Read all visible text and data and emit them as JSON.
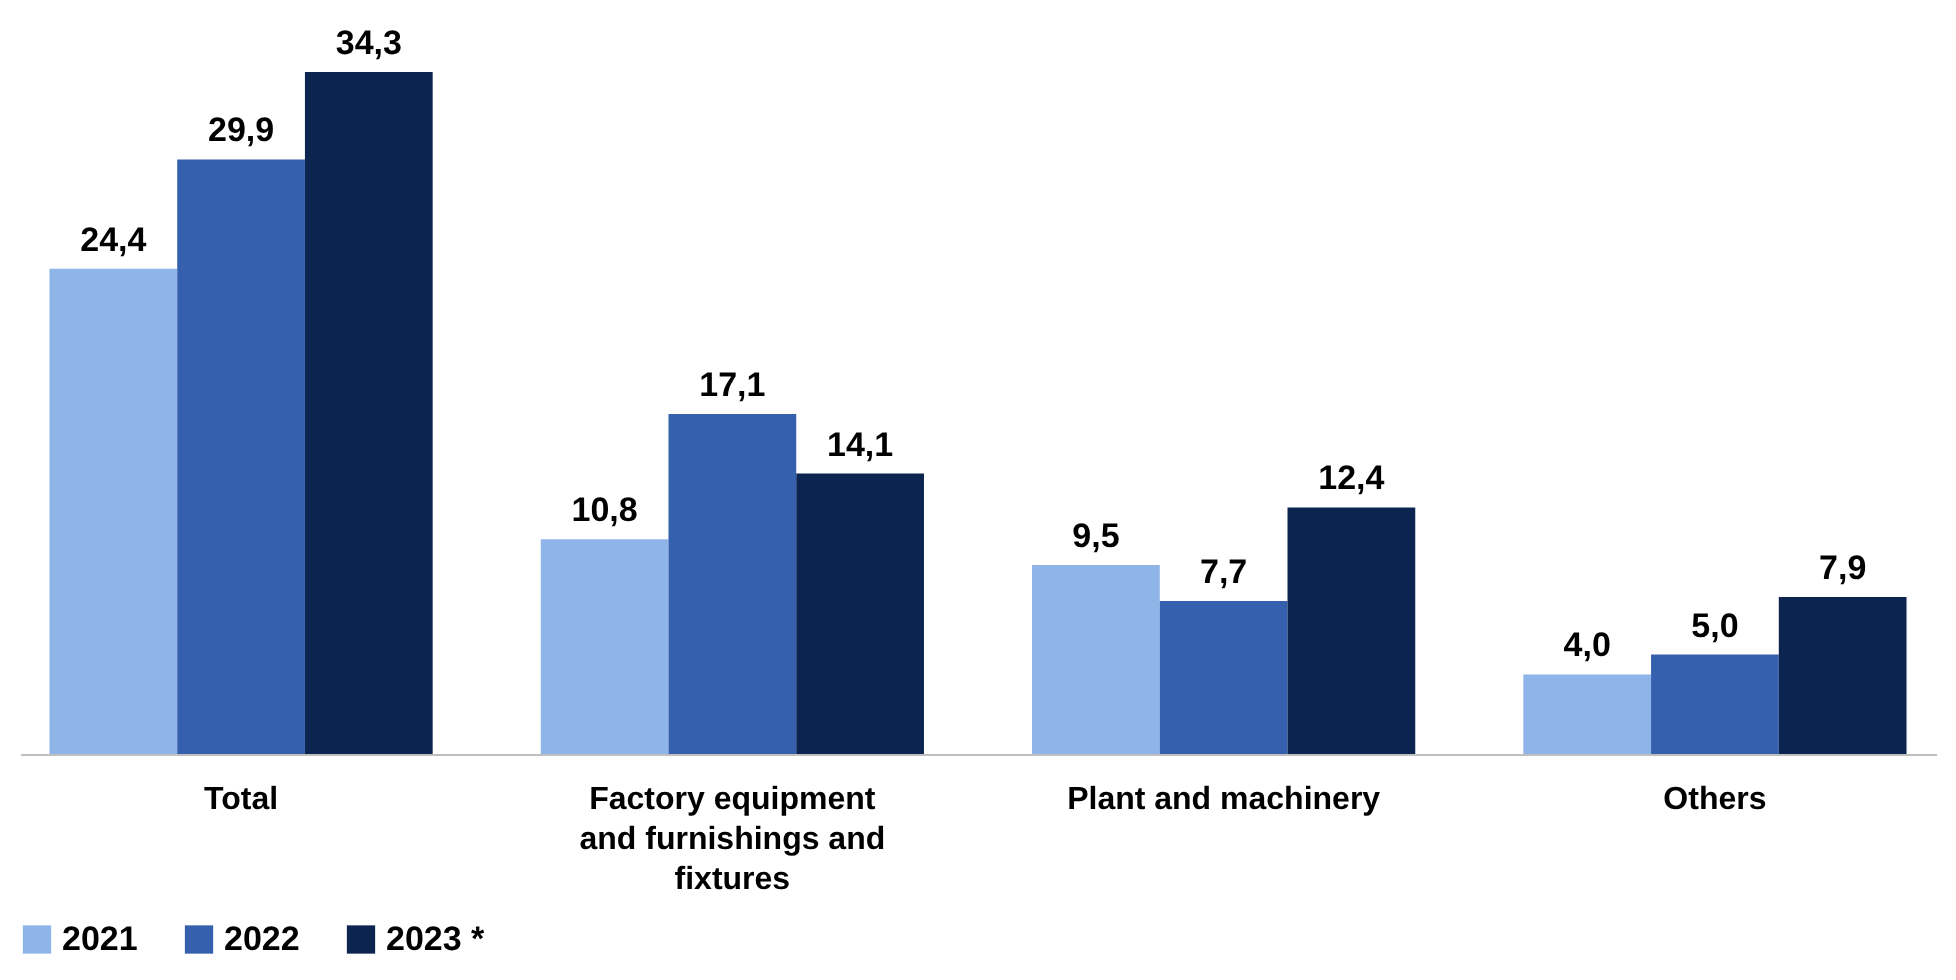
{
  "chart_data": {
    "type": "bar",
    "categories": [
      "Total",
      "Factory equipment and furnishings and fixtures",
      "Plant and machinery",
      "Others"
    ],
    "series": [
      {
        "name": "2021",
        "color": "#8fb4e8",
        "values": [
          24.4,
          10.8,
          9.5,
          4.0
        ],
        "value_labels": [
          "24,4",
          "10,8",
          "9,5",
          "4,0"
        ]
      },
      {
        "name": "2022",
        "color": "#3560ad",
        "values": [
          29.9,
          17.1,
          7.7,
          5.0
        ],
        "value_labels": [
          "29,9",
          "17,1",
          "7,7",
          "5,0"
        ]
      },
      {
        "name": "2023 *",
        "color": "#0c2550",
        "values": [
          34.3,
          14.1,
          12.4,
          7.9
        ],
        "value_labels": [
          "34,3",
          "14,1",
          "12,4",
          "7,9"
        ]
      }
    ],
    "legend": "bottom left"
  }
}
